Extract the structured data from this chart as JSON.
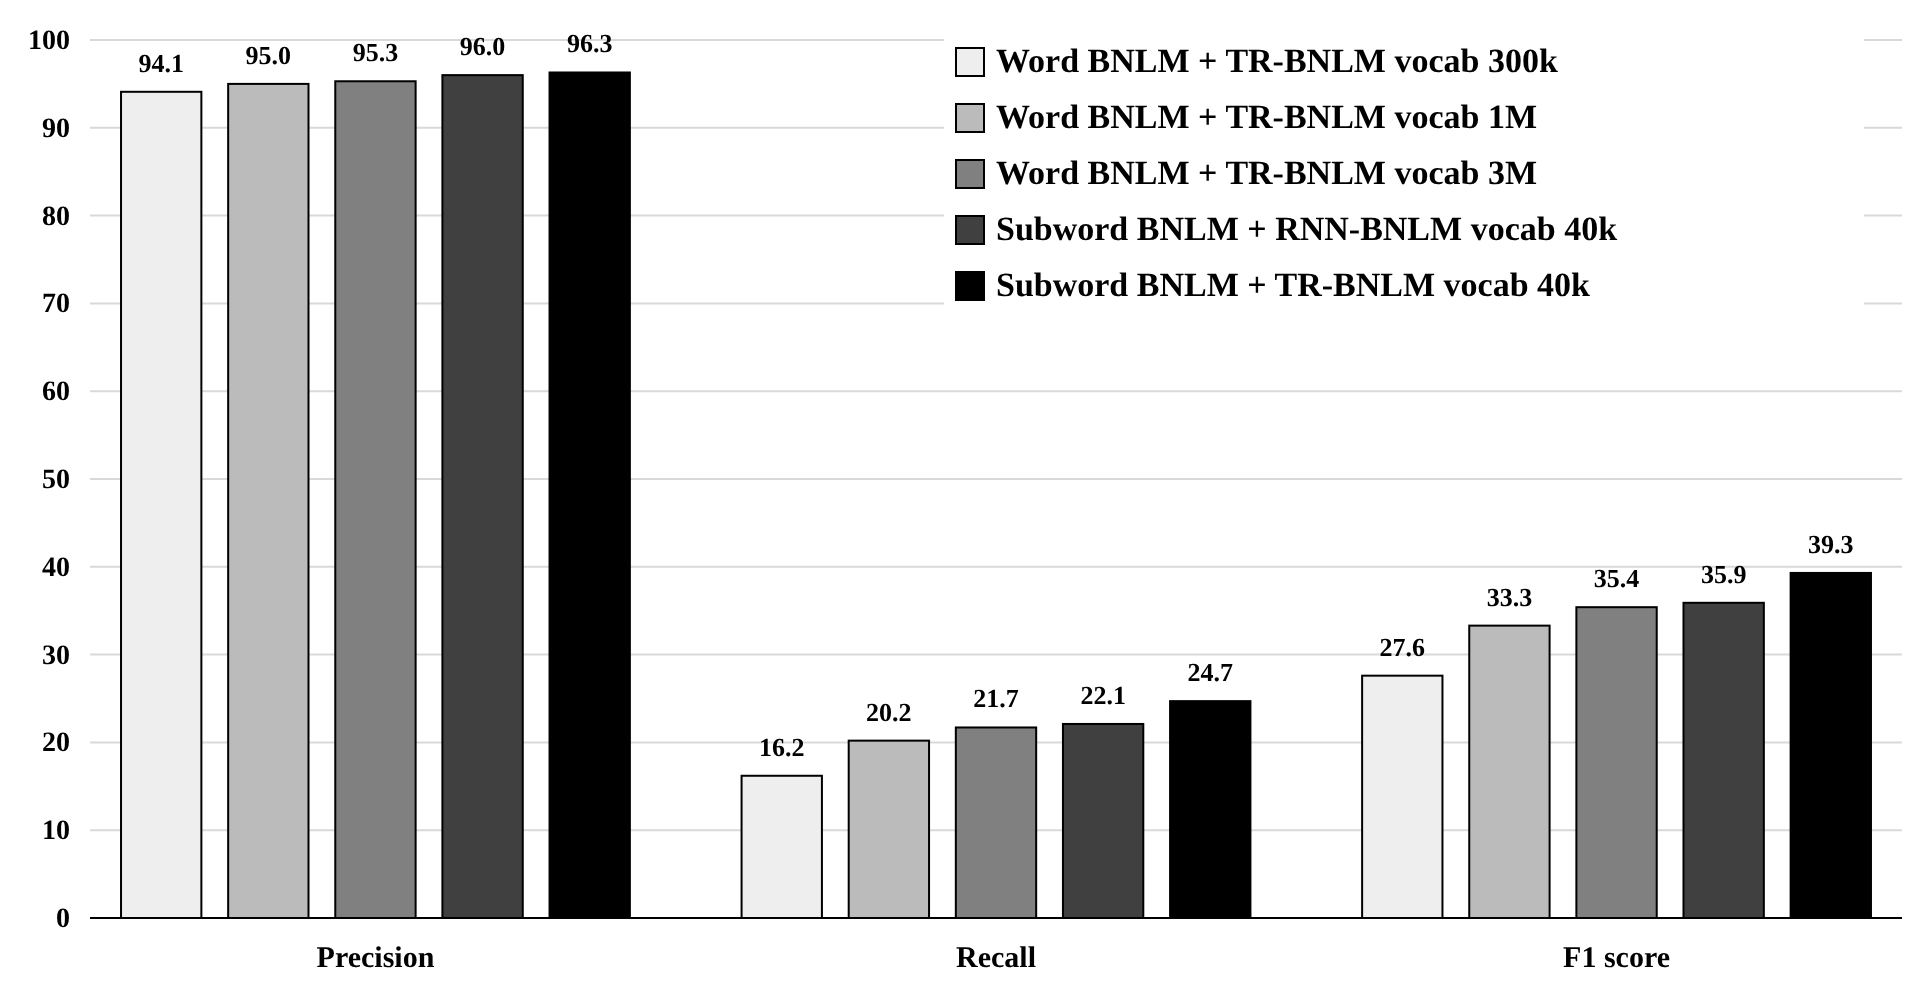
{
  "chart_data": {
    "type": "bar",
    "categories": [
      "Precision",
      "Recall",
      "F1 score"
    ],
    "series": [
      {
        "name": "Word BNLM + TR-BNLM vocab 300k",
        "color": "#eeeeee",
        "values": [
          94.1,
          16.2,
          27.6
        ],
        "value_labels": [
          "94.1",
          "16.2",
          "27.6"
        ]
      },
      {
        "name": "Word BNLM + TR-BNLM vocab 1M",
        "color": "#bbbbbb",
        "values": [
          95.0,
          20.2,
          33.3
        ],
        "value_labels": [
          "95.0",
          "20.2",
          "33.3"
        ]
      },
      {
        "name": "Word BNLM + TR-BNLM vocab 3M",
        "color": "#808080",
        "values": [
          95.3,
          21.7,
          35.4
        ],
        "value_labels": [
          "95.3",
          "21.7",
          "35.4"
        ]
      },
      {
        "name": "Subword BNLM + RNN-BNLM vocab 40k",
        "color": "#404040",
        "values": [
          96.0,
          22.1,
          35.9
        ],
        "value_labels": [
          "96.0",
          "22.1",
          "35.9"
        ]
      },
      {
        "name": "Subword BNLM + TR-BNLM vocab 40k",
        "color": "#000000",
        "values": [
          96.3,
          24.7,
          39.3
        ],
        "value_labels": [
          "96.3",
          "24.7",
          "39.3"
        ]
      }
    ],
    "ylim": [
      0,
      100
    ],
    "yticks": [
      0,
      10,
      20,
      30,
      40,
      50,
      60,
      70,
      80,
      90,
      100
    ],
    "grid": "y",
    "legend": "top right"
  }
}
